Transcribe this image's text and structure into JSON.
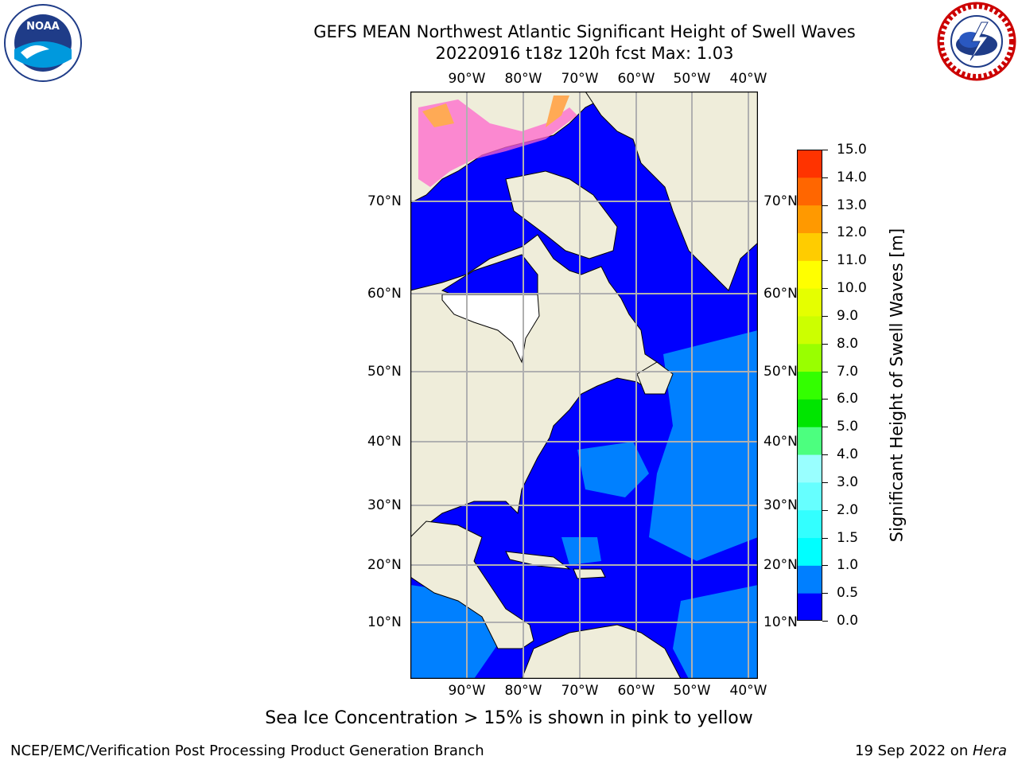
{
  "header": {
    "title": "GEFS MEAN Northwest Atlantic Significant Height of Swell Waves",
    "subtitle": "20220916 t18z 120h fcst   Max: 1.03"
  },
  "logos": {
    "left": "noaa-logo",
    "right": "nws-logo"
  },
  "axes": {
    "lon_labels": [
      "90°W",
      "80°W",
      "70°W",
      "60°W",
      "50°W",
      "40°W"
    ],
    "lat_labels": [
      "70°N",
      "60°N",
      "50°N",
      "40°N",
      "30°N",
      "20°N",
      "10°N"
    ]
  },
  "colorbar": {
    "label": "Significant Height of Swell Waves [m]",
    "ticks": [
      "0.0",
      "0.5",
      "1.0",
      "1.5",
      "2.0",
      "3.0",
      "4.0",
      "5.0",
      "6.0",
      "7.0",
      "8.0",
      "9.0",
      "10.0",
      "11.0",
      "12.0",
      "13.0",
      "14.0",
      "15.0"
    ],
    "colors": [
      "#0000ff",
      "#007fff",
      "#00ffff",
      "#33ffff",
      "#66ffff",
      "#99ffff",
      "#4cff7f",
      "#00e500",
      "#33ff00",
      "#99ff00",
      "#ccff00",
      "#e5ff00",
      "#ffff00",
      "#ffcc00",
      "#ff9900",
      "#ff6600",
      "#ff3300",
      "#ff0000"
    ]
  },
  "map_colors": {
    "land": "#efedda",
    "ocean_low": "#0000ff",
    "ocean_mid": "#0080ff",
    "ice": "#ff66cc",
    "ice_high": "#ffaa55",
    "grid": "#b0b0b0"
  },
  "note": "Sea Ice Concentration > 15% is shown in pink to yellow",
  "footer": {
    "left": "NCEP/EMC/Verification Post Processing Product Generation Branch",
    "right_prefix": "19 Sep 2022 on ",
    "right_host": "Hera"
  }
}
